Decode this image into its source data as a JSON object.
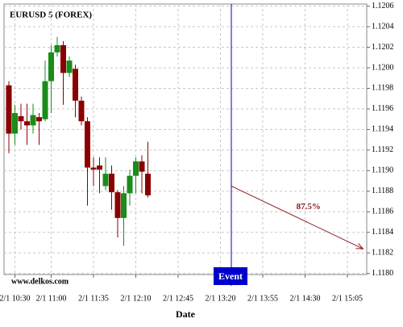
{
  "chart_data": {
    "type": "candlestick",
    "title": "EURUSD 5 (FOREX)",
    "watermark": "www.delkos.com",
    "x_label": "Date",
    "x": [
      -5,
      0,
      5,
      10,
      15,
      20,
      25,
      30,
      35,
      40,
      45,
      50,
      55,
      60,
      65,
      70,
      75,
      80,
      85,
      90,
      95,
      100,
      105,
      110
    ],
    "open": [
      1.11983,
      1.11936,
      1.11953,
      1.11948,
      1.11944,
      1.11952,
      1.1195,
      1.11987,
      1.12015,
      1.12022,
      1.11995,
      1.11999,
      1.11968,
      1.11948,
      1.11903,
      1.11905,
      1.11885,
      1.11897,
      1.11879,
      1.11854,
      1.11878,
      1.11895,
      1.11909,
      1.11897
    ],
    "high": [
      1.11987,
      1.11964,
      1.11965,
      1.11965,
      1.11965,
      1.11956,
      1.12007,
      1.12022,
      1.1203,
      1.12026,
      1.12011,
      1.12003,
      1.11972,
      1.11952,
      1.11913,
      1.11913,
      1.11913,
      1.11905,
      1.11881,
      1.11885,
      1.11901,
      1.11913,
      1.11915,
      1.11928
    ],
    "low": [
      1.11917,
      1.11925,
      1.1194,
      1.11925,
      1.11936,
      1.11925,
      1.11948,
      1.11956,
      1.12011,
      1.11964,
      1.11991,
      1.11952,
      1.11944,
      1.11866,
      1.11885,
      1.11878,
      1.11881,
      1.11862,
      1.11835,
      1.11827,
      1.11866,
      1.11878,
      1.11878,
      1.11874
    ],
    "close": [
      1.11936,
      1.11956,
      1.11948,
      1.11944,
      1.11954,
      1.11948,
      1.11987,
      1.12015,
      1.12022,
      1.11995,
      1.12007,
      1.11968,
      1.11948,
      1.11903,
      1.11901,
      1.11901,
      1.11897,
      1.11879,
      1.11854,
      1.11878,
      1.11895,
      1.11909,
      1.11899,
      1.11876
    ],
    "up_color": "#1a8c1a",
    "down_color": "#8b0000",
    "event": {
      "label": "Event",
      "x": 179,
      "color": "#0000cc"
    },
    "projection": {
      "label": "87.5%",
      "x": [
        179,
        288
      ],
      "y": [
        1.11885,
        1.11824
      ],
      "color": "#8b1a1a"
    },
    "xlim": [
      -9,
      291
    ],
    "xticks": [
      {
        "value": 0,
        "label": "2/1 10:30"
      },
      {
        "value": 30,
        "label": "2/1 11:00"
      },
      {
        "value": 65,
        "label": "2/1 11:35"
      },
      {
        "value": 100,
        "label": "2/1 12:10"
      },
      {
        "value": 135,
        "label": "2/1 12:45"
      },
      {
        "value": 170,
        "label": "2/1 13:20"
      },
      {
        "value": 205,
        "label": "2/1 13:55"
      },
      {
        "value": 240,
        "label": "2/1 14:30"
      },
      {
        "value": 275,
        "label": "2/1 15:05"
      }
    ],
    "ylim": [
      1.11799,
      1.12062
    ],
    "yticks": [
      {
        "value": 1.118,
        "label": "1.1180"
      },
      1.1182,
      1.1184,
      1.1186,
      1.1188,
      {
        "value": 1.119,
        "label": "1.1190"
      },
      1.1192,
      1.1194,
      1.1196,
      1.1198,
      {
        "value": 1.12,
        "label": "1.1200"
      },
      1.1202,
      1.1204,
      1.1206
    ],
    "grid": true
  }
}
